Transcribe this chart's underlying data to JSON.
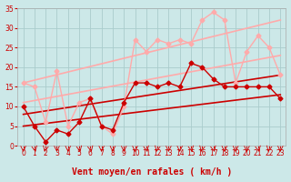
{
  "background_color": "#cce8e8",
  "grid_color": "#aacccc",
  "xlabel": "Vent moyen/en rafales ( km/h )",
  "xlim": [
    -0.5,
    23.5
  ],
  "ylim": [
    0,
    35
  ],
  "yticks": [
    0,
    5,
    10,
    15,
    20,
    25,
    30,
    35
  ],
  "xticks": [
    0,
    1,
    2,
    3,
    4,
    5,
    6,
    7,
    8,
    9,
    10,
    11,
    12,
    13,
    14,
    15,
    16,
    17,
    18,
    19,
    20,
    21,
    22,
    23
  ],
  "series": [
    {
      "x": [
        0,
        1,
        2,
        3,
        4,
        5,
        6,
        7,
        8,
        9,
        10,
        11,
        12,
        13,
        14,
        15,
        16,
        17,
        18,
        19,
        20,
        21,
        22,
        23
      ],
      "y": [
        16,
        15,
        6,
        19,
        5,
        11,
        12,
        5,
        3,
        10,
        27,
        24,
        27,
        26,
        27,
        26,
        32,
        34,
        32,
        16,
        24,
        28,
        25,
        18
      ],
      "color": "#ffaaaa",
      "linewidth": 1.0,
      "markersize": 2.5,
      "marker": "D"
    },
    {
      "x": [
        0,
        1,
        2,
        3,
        4,
        5,
        6,
        7,
        8,
        9,
        10,
        11,
        12,
        13,
        14,
        15,
        16,
        17,
        18,
        19,
        20,
        21,
        22,
        23
      ],
      "y": [
        10,
        5,
        1,
        4,
        3,
        6,
        12,
        5,
        4,
        11,
        16,
        16,
        15,
        16,
        15,
        21,
        20,
        17,
        15,
        15,
        15,
        15,
        15,
        12
      ],
      "color": "#cc0000",
      "linewidth": 1.0,
      "markersize": 2.5,
      "marker": "D"
    },
    {
      "x": [
        0,
        23
      ],
      "y": [
        5,
        13
      ],
      "color": "#cc0000",
      "linewidth": 1.2,
      "markersize": 0,
      "marker": null
    },
    {
      "x": [
        0,
        23
      ],
      "y": [
        8,
        18
      ],
      "color": "#cc0000",
      "linewidth": 1.2,
      "markersize": 0,
      "marker": null
    },
    {
      "x": [
        0,
        23
      ],
      "y": [
        11,
        23
      ],
      "color": "#ffaaaa",
      "linewidth": 1.2,
      "markersize": 0,
      "marker": null
    },
    {
      "x": [
        0,
        23
      ],
      "y": [
        16,
        32
      ],
      "color": "#ffaaaa",
      "linewidth": 1.2,
      "markersize": 0,
      "marker": null
    }
  ],
  "arrow_color": "#cc0000",
  "xlabel_fontsize": 7,
  "tick_fontsize": 5.5
}
